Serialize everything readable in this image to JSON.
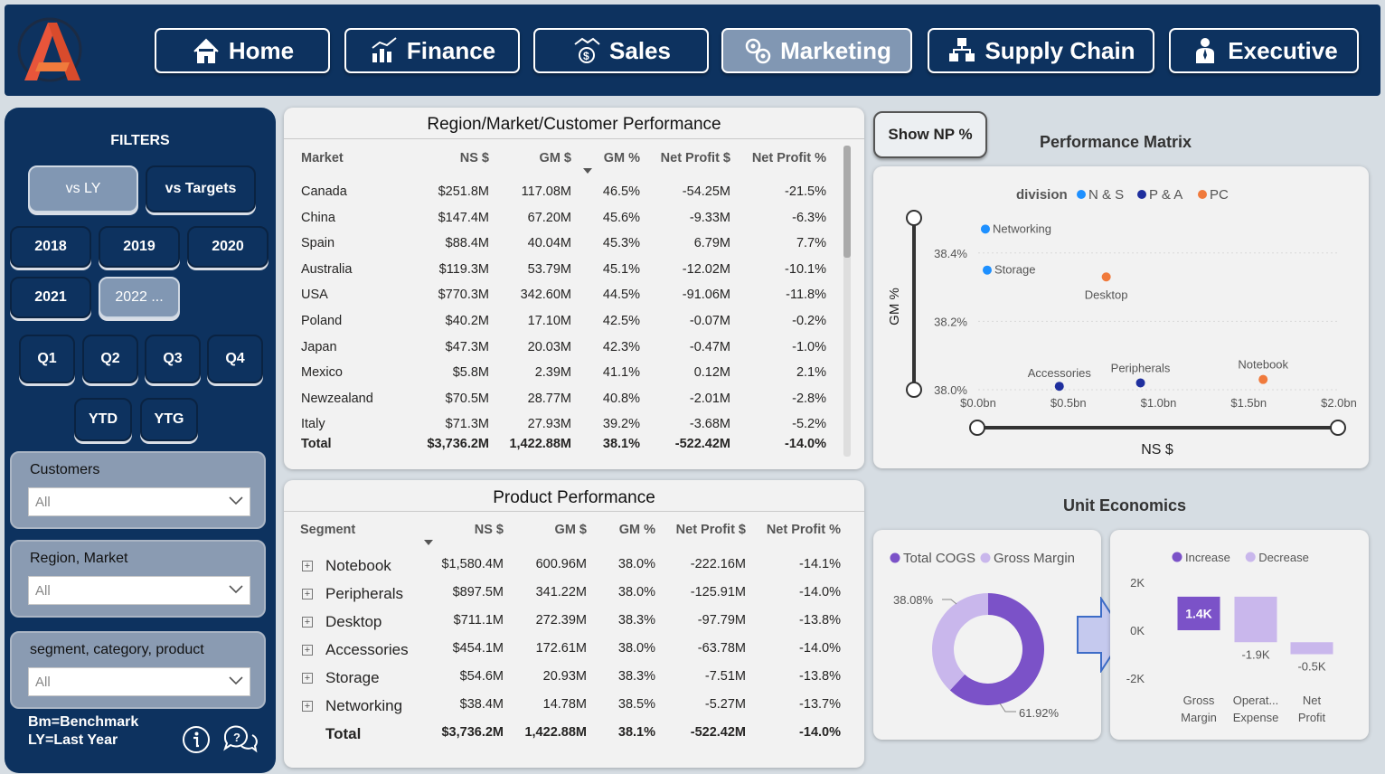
{
  "nav": {
    "items": [
      {
        "label": "Home",
        "icon": "home-icon"
      },
      {
        "label": "Finance",
        "icon": "finance-chart-icon"
      },
      {
        "label": "Sales",
        "icon": "sales-handshake-icon"
      },
      {
        "label": "Marketing",
        "icon": "marketing-icon"
      },
      {
        "label": "Supply Chain",
        "icon": "supply-chain-icon"
      },
      {
        "label": "Executive",
        "icon": "executive-icon"
      }
    ],
    "active": "Marketing"
  },
  "filters": {
    "title": "FILTERS",
    "compare": [
      "vs LY",
      "vs Targets"
    ],
    "years": [
      "2018",
      "2019",
      "2020",
      "2021",
      "2022 ..."
    ],
    "quarters": [
      "Q1",
      "Q2",
      "Q3",
      "Q4"
    ],
    "periods": [
      "YTD",
      "YTG"
    ],
    "slicers": [
      {
        "label": "Customers",
        "value": "All"
      },
      {
        "label": "Region, Market",
        "value": "All"
      },
      {
        "label": "segment, category, product",
        "value": "All"
      }
    ],
    "note_line1": "Bm=Benchmark",
    "note_line2": "LY=Last Year"
  },
  "market_table": {
    "title": "Region/Market/Customer Performance",
    "headers": [
      "Market",
      "NS $",
      "GM $",
      "GM %",
      "Net Profit $",
      "Net Profit %"
    ],
    "rows": [
      [
        "Canada",
        "$251.8M",
        "117.08M",
        "46.5%",
        "-54.25M",
        "-21.5%"
      ],
      [
        "China",
        "$147.4M",
        "67.20M",
        "45.6%",
        "-9.33M",
        "-6.3%"
      ],
      [
        "Spain",
        "$88.4M",
        "40.04M",
        "45.3%",
        "6.79M",
        "7.7%"
      ],
      [
        "Australia",
        "$119.3M",
        "53.79M",
        "45.1%",
        "-12.02M",
        "-10.1%"
      ],
      [
        "USA",
        "$770.3M",
        "342.60M",
        "44.5%",
        "-91.06M",
        "-11.8%"
      ],
      [
        "Poland",
        "$40.2M",
        "17.10M",
        "42.5%",
        "-0.07M",
        "-0.2%"
      ],
      [
        "Japan",
        "$47.3M",
        "20.03M",
        "42.3%",
        "-0.47M",
        "-1.0%"
      ],
      [
        "Mexico",
        "$5.8M",
        "2.39M",
        "41.1%",
        "0.12M",
        "2.1%"
      ],
      [
        "Newzealand",
        "$70.5M",
        "28.77M",
        "40.8%",
        "-2.01M",
        "-2.8%"
      ],
      [
        "Italy",
        "$71.3M",
        "27.93M",
        "39.2%",
        "-3.68M",
        "-5.2%"
      ]
    ],
    "total": [
      "Total",
      "$3,736.2M",
      "1,422.88M",
      "38.1%",
      "-522.42M",
      "-14.0%"
    ]
  },
  "product_table": {
    "title": "Product Performance",
    "headers": [
      "Segment",
      "NS $",
      "GM $",
      "GM %",
      "Net Profit $",
      "Net Profit %"
    ],
    "rows": [
      [
        "Notebook",
        "$1,580.4M",
        "600.96M",
        "38.0%",
        "-222.16M",
        "-14.1%"
      ],
      [
        "Peripherals",
        "$897.5M",
        "341.22M",
        "38.0%",
        "-125.91M",
        "-14.0%"
      ],
      [
        "Desktop",
        "$711.1M",
        "272.39M",
        "38.3%",
        "-97.79M",
        "-13.8%"
      ],
      [
        "Accessories",
        "$454.1M",
        "172.61M",
        "38.0%",
        "-63.78M",
        "-14.0%"
      ],
      [
        "Storage",
        "$54.6M",
        "20.93M",
        "38.3%",
        "-7.51M",
        "-13.8%"
      ],
      [
        "Networking",
        "$38.4M",
        "14.78M",
        "38.5%",
        "-5.27M",
        "-13.7%"
      ]
    ],
    "total": [
      "Total",
      "$3,736.2M",
      "1,422.88M",
      "38.1%",
      "-522.42M",
      "-14.0%"
    ]
  },
  "show_np_label": "Show NP %",
  "matrix": {
    "title": "Performance Matrix",
    "legend_title": "division",
    "colors": {
      "N & S": "#1e90ff",
      "P & A": "#1f2f9e",
      "PC": "#f07a3c"
    }
  },
  "unit_economics_title": "Unit Economics",
  "chart_data": [
    {
      "type": "scatter",
      "title": "",
      "xlabel": "NS $",
      "ylabel": "GM %",
      "xlim": [
        0,
        2.0
      ],
      "ylim": [
        38.0,
        38.5
      ],
      "x_ticks": [
        "$0.0bn",
        "$0.5bn",
        "$1.0bn",
        "$1.5bn",
        "$2.0bn"
      ],
      "y_ticks": [
        "38.0%",
        "38.2%",
        "38.4%"
      ],
      "legend": [
        "N & S",
        "P & A",
        "PC"
      ],
      "points": [
        {
          "label": "Networking",
          "series": "N & S",
          "x": 0.04,
          "y": 38.47
        },
        {
          "label": "Storage",
          "series": "N & S",
          "x": 0.05,
          "y": 38.35
        },
        {
          "label": "Desktop",
          "series": "PC",
          "x": 0.71,
          "y": 38.33
        },
        {
          "label": "Accessories",
          "series": "P & A",
          "x": 0.45,
          "y": 38.01
        },
        {
          "label": "Peripherals",
          "series": "P & A",
          "x": 0.9,
          "y": 38.02
        },
        {
          "label": "Notebook",
          "series": "PC",
          "x": 1.58,
          "y": 38.03
        }
      ]
    },
    {
      "type": "pie",
      "title": "",
      "legend": [
        "Total COGS",
        "Gross Margin"
      ],
      "slices": [
        {
          "name": "Total COGS",
          "value": 61.92,
          "label": "61.92%",
          "color": "#7b52c8"
        },
        {
          "name": "Gross Margin",
          "value": 38.08,
          "label": "38.08%",
          "color": "#c9b7ec"
        }
      ]
    },
    {
      "type": "bar",
      "title": "",
      "legend": [
        "Increase",
        "Decrease"
      ],
      "colors": {
        "Increase": "#7b52c8",
        "Decrease": "#c9b7ec"
      },
      "categories": [
        "Gross Margin",
        "Operat... Expense",
        "Net Profit"
      ],
      "values": [
        1.4,
        -1.9,
        -0.5
      ],
      "labels": [
        "1.4K",
        "-1.9K",
        "-0.5K"
      ],
      "y_ticks": [
        "2K",
        "0K",
        "-2K"
      ],
      "ylim": [
        -2,
        2
      ]
    }
  ]
}
